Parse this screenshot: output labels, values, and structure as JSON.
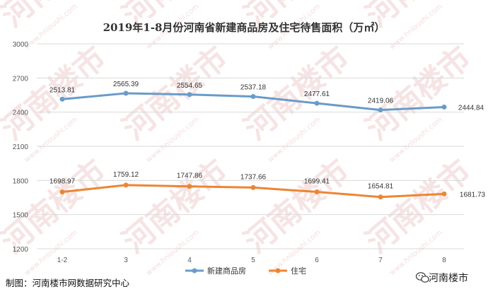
{
  "chart_data": {
    "type": "line",
    "title": "2019年1-8月份河南省新建商品房及住宅待售面积（万㎡）",
    "categories": [
      "1-2",
      "3",
      "4",
      "5",
      "6",
      "7",
      "8"
    ],
    "ylim": [
      1200,
      3000
    ],
    "yticks": [
      1200,
      1500,
      1800,
      2100,
      2400,
      2700,
      3000
    ],
    "grid": true,
    "legend_position": "bottom",
    "series": [
      {
        "name": "新建商品房",
        "color": "#6a9bc9",
        "values": [
          2513.81,
          2565.39,
          2554.65,
          2537.18,
          2477.61,
          2419.06,
          2444.84
        ],
        "labels": [
          "2513.81",
          "2565.39",
          "2554.65",
          "2537.18",
          "2477.61",
          "2419.06",
          "2444.84"
        ]
      },
      {
        "name": "住宅",
        "color": "#ed8534",
        "values": [
          1698.97,
          1759.12,
          1747.86,
          1737.66,
          1699.41,
          1654.81,
          1681.73
        ],
        "labels": [
          "1698.97",
          "1759.12",
          "1747.86",
          "1737.66",
          "1699.41",
          "1654.81",
          "1681.73"
        ]
      }
    ]
  },
  "footer": {
    "source": "制图：河南楼市网数据研究中心",
    "brand": "河南楼市",
    "brand_icon": "wechat-icon"
  },
  "watermark": {
    "text": "河南楼市",
    "url": "www.hnloushi.com"
  }
}
